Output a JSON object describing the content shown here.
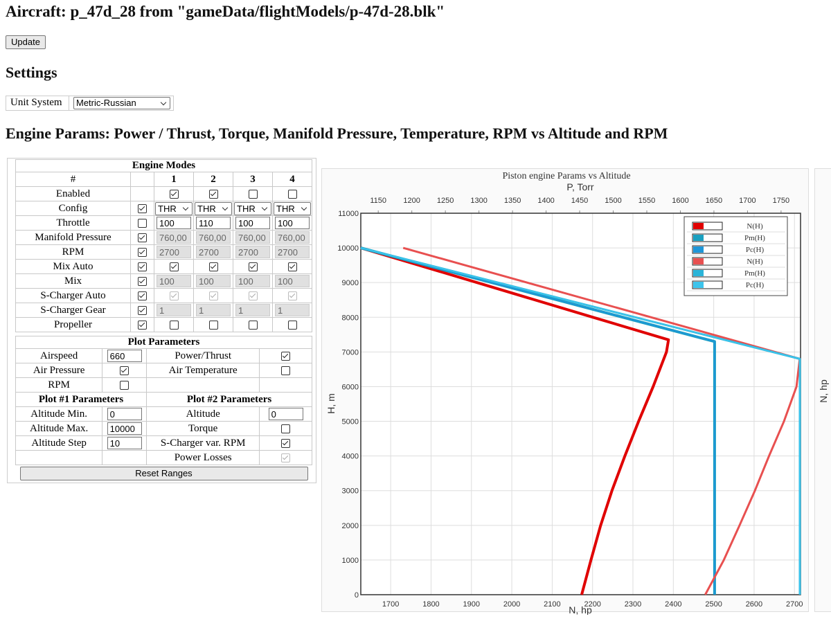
{
  "header": {
    "title": "Aircraft: p_47d_28 from \"gameData/flightModels/p-47d-28.blk\"",
    "update_button": "Update",
    "settings_heading": "Settings",
    "unit_system_label": "Unit System",
    "unit_system_value": "Metric-Russian",
    "engine_heading": "Engine Params: Power / Thrust, Torque, Manifold Pressure, Temperature, RPM vs Altitude and RPM"
  },
  "engine_modes": {
    "title": "Engine Modes",
    "columns": [
      "#",
      "1",
      "2",
      "3",
      "4"
    ],
    "rows": [
      {
        "label": "Enabled",
        "checks": [
          true,
          true,
          false,
          false
        ]
      },
      {
        "label": "Config",
        "check": true,
        "selects": [
          "THR",
          "THR",
          "THR",
          "THR"
        ]
      },
      {
        "label": "Throttle",
        "check": false,
        "inputs": [
          "100",
          "110",
          "100",
          "100"
        ]
      },
      {
        "label": "Manifold Pressure",
        "check": true,
        "inputs": [
          "760,00",
          "760,00",
          "760,00",
          "760,00"
        ],
        "disabled": true
      },
      {
        "label": "RPM",
        "check": true,
        "inputs": [
          "2700",
          "2700",
          "2700",
          "2700"
        ],
        "disabled": true
      },
      {
        "label": "Mix Auto",
        "check": true,
        "checks": [
          true,
          true,
          true,
          true
        ]
      },
      {
        "label": "Mix",
        "check": true,
        "inputs": [
          "100",
          "100",
          "100",
          "100"
        ],
        "disabled": true
      },
      {
        "label": "S-Charger Auto",
        "check": true,
        "checks": [
          true,
          true,
          true,
          true
        ],
        "disabled": true
      },
      {
        "label": "S-Charger Gear",
        "check": true,
        "inputs": [
          "1",
          "1",
          "1",
          "1"
        ],
        "disabled": true
      },
      {
        "label": "Propeller",
        "check": true,
        "checks": [
          false,
          false,
          false,
          false
        ]
      }
    ]
  },
  "plot_parameters": {
    "title": "Plot Parameters",
    "rows": [
      {
        "cells": [
          {
            "label": "Airspeed",
            "input": "660"
          },
          {
            "label": "Power/Thrust",
            "check": true
          }
        ]
      },
      {
        "cells": [
          {
            "label": "Air Pressure",
            "check": true
          },
          {
            "label": "Air Temperature",
            "check": false
          }
        ]
      },
      {
        "cells": [
          {
            "label": "RPM",
            "check": false
          },
          null
        ]
      },
      {
        "headers": [
          "Plot #1 Parameters",
          "Plot #2 Parameters"
        ]
      },
      {
        "cells": [
          {
            "label": "Altitude Min.",
            "input": "0"
          },
          {
            "label": "Altitude",
            "input": "0"
          }
        ]
      },
      {
        "cells": [
          {
            "label": "Altitude Max.",
            "input": "10000"
          },
          {
            "label": "Torque",
            "check": false
          }
        ]
      },
      {
        "cells": [
          {
            "label": "Altitude Step",
            "input": "10"
          },
          {
            "label": "S-Charger var. RPM",
            "check": true
          }
        ]
      },
      {
        "cells": [
          null,
          {
            "label": "Power Losses",
            "check": true,
            "disabled": true
          }
        ]
      }
    ],
    "reset_button": "Reset Ranges"
  },
  "chart_data": {
    "type": "line",
    "title": "Piston engine Params vs Altitude",
    "x_label": "N, hp",
    "x2_label": "P, Torr",
    "y_label": "H, m",
    "right_panel_label": "N, hp",
    "xlim": [
      1626,
      2715
    ],
    "xticks": [
      1700,
      1800,
      1900,
      2000,
      2100,
      2200,
      2300,
      2400,
      2500,
      2600,
      2700
    ],
    "x2lim": [
      1124,
      1779
    ],
    "x2ticks": [
      1150,
      1200,
      1250,
      1300,
      1350,
      1400,
      1450,
      1500,
      1550,
      1600,
      1650,
      1700,
      1750
    ],
    "ylim": [
      0,
      11000
    ],
    "yticks": [
      0,
      1000,
      2000,
      3000,
      4000,
      5000,
      6000,
      7000,
      8000,
      9000,
      10000,
      11000
    ],
    "grid": true,
    "series": [
      {
        "name": "N(H)",
        "color": "#e00000",
        "x": [
          1626,
          1914,
          2201,
          2388,
          2383,
          2350,
          2314,
          2280,
          2248,
          2220,
          2196,
          2173
        ],
        "y": [
          10000,
          9000,
          8000,
          7350,
          7000,
          6000,
          5000,
          4000,
          3000,
          2000,
          1000,
          0
        ]
      },
      {
        "name": "Pm(H)",
        "color": "#1aa0c0",
        "axis": "x2",
        "x": [
          1124,
          1651,
          1651
        ],
        "y": [
          10000,
          7300,
          0
        ]
      },
      {
        "name": "Pc(H)",
        "color": "#1e96d8",
        "axis": "x2",
        "x": [
          1124,
          1651,
          1651
        ],
        "y": [
          10000,
          7300,
          0
        ]
      },
      {
        "name": "N(H)",
        "color": "#e85050",
        "x": [
          1731,
          2713,
          2705,
          2674,
          2637,
          2602,
          2564,
          2525,
          2479
        ],
        "y": [
          10000,
          6800,
          6000,
          5000,
          4000,
          3000,
          2000,
          1000,
          0
        ]
      },
      {
        "name": "Pm(H)",
        "color": "#2ab4d8",
        "axis": "x2",
        "x": [
          1124,
          1778,
          1778
        ],
        "y": [
          10000,
          6800,
          0
        ]
      },
      {
        "name": "Pc(H)",
        "color": "#3cc4ec",
        "axis": "x2",
        "x": [
          1124,
          1778,
          1778
        ],
        "y": [
          10000,
          6800,
          0
        ]
      }
    ]
  }
}
